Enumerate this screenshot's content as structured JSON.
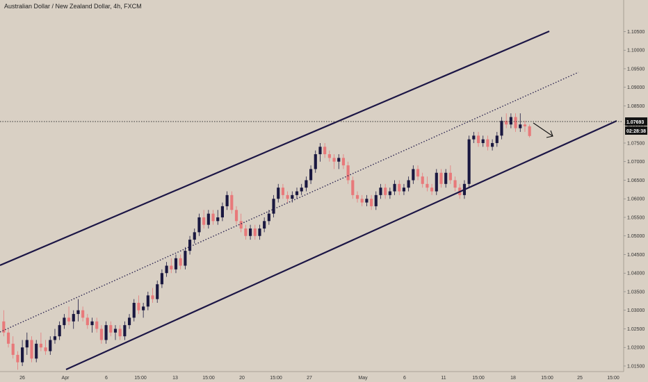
{
  "chart_data": {
    "type": "candlestick",
    "title": "Australian Dollar / New Zealand Dollar, 4h, FXCM",
    "ylim": [
      1.0135,
      1.1135
    ],
    "y_ticks": [
      "1.01500",
      "1.02000",
      "1.02500",
      "1.03000",
      "1.03500",
      "1.04000",
      "1.04500",
      "1.05000",
      "1.05500",
      "1.06000",
      "1.06500",
      "1.07000",
      "1.07500",
      "1.08000",
      "1.08500",
      "1.09000",
      "1.09500",
      "1.10000",
      "1.10500"
    ],
    "x_ticks": [
      "26",
      "Apr",
      "6",
      "15:00",
      "13",
      "15:00",
      "20",
      "15:00",
      "27",
      "May",
      "6",
      "11",
      "15:00",
      "18",
      "15:00",
      "25",
      "15:00"
    ],
    "last_price": "1.07693",
    "countdown": "02:28:38",
    "colors": {
      "up": "#1a1840",
      "down": "#e8797a",
      "line": "#1c1646",
      "label_bg": "#131313"
    },
    "candles": [
      [
        1.027,
        1.03,
        1.023,
        1.024
      ],
      [
        1.024,
        1.025,
        1.02,
        1.021
      ],
      [
        1.021,
        1.023,
        1.017,
        1.018
      ],
      [
        1.018,
        1.019,
        1.014,
        1.016
      ],
      [
        1.016,
        1.022,
        1.015,
        1.02
      ],
      [
        1.02,
        1.024,
        1.018,
        1.022
      ],
      [
        1.022,
        1.023,
        1.016,
        1.017
      ],
      [
        1.017,
        1.022,
        1.016,
        1.021
      ],
      [
        1.021,
        1.024,
        1.019,
        1.02
      ],
      [
        1.02,
        1.022,
        1.018,
        1.019
      ],
      [
        1.019,
        1.023,
        1.018,
        1.022
      ],
      [
        1.022,
        1.025,
        1.021,
        1.023
      ],
      [
        1.023,
        1.027,
        1.022,
        1.026
      ],
      [
        1.026,
        1.029,
        1.025,
        1.028
      ],
      [
        1.028,
        1.031,
        1.026,
        1.027
      ],
      [
        1.027,
        1.03,
        1.025,
        1.029
      ],
      [
        1.029,
        1.033,
        1.027,
        1.03
      ],
      [
        1.03,
        1.031,
        1.027,
        1.028
      ],
      [
        1.028,
        1.029,
        1.025,
        1.026
      ],
      [
        1.026,
        1.028,
        1.024,
        1.027
      ],
      [
        1.027,
        1.028,
        1.024,
        1.025
      ],
      [
        1.025,
        1.026,
        1.021,
        1.022
      ],
      [
        1.022,
        1.027,
        1.021,
        1.026
      ],
      [
        1.026,
        1.027,
        1.023,
        1.024
      ],
      [
        1.024,
        1.026,
        1.022,
        1.025
      ],
      [
        1.025,
        1.026,
        1.022,
        1.023
      ],
      [
        1.023,
        1.027,
        1.022,
        1.026
      ],
      [
        1.026,
        1.029,
        1.025,
        1.028
      ],
      [
        1.028,
        1.033,
        1.027,
        1.032
      ],
      [
        1.032,
        1.034,
        1.029,
        1.03
      ],
      [
        1.03,
        1.032,
        1.028,
        1.031
      ],
      [
        1.031,
        1.035,
        1.03,
        1.034
      ],
      [
        1.034,
        1.036,
        1.032,
        1.033
      ],
      [
        1.033,
        1.038,
        1.032,
        1.037
      ],
      [
        1.037,
        1.041,
        1.036,
        1.04
      ],
      [
        1.04,
        1.043,
        1.039,
        1.042
      ],
      [
        1.042,
        1.044,
        1.04,
        1.041
      ],
      [
        1.041,
        1.045,
        1.04,
        1.044
      ],
      [
        1.044,
        1.045,
        1.041,
        1.042
      ],
      [
        1.042,
        1.047,
        1.041,
        1.046
      ],
      [
        1.046,
        1.05,
        1.045,
        1.049
      ],
      [
        1.049,
        1.052,
        1.048,
        1.051
      ],
      [
        1.051,
        1.056,
        1.05,
        1.055
      ],
      [
        1.055,
        1.057,
        1.052,
        1.053
      ],
      [
        1.053,
        1.057,
        1.052,
        1.056
      ],
      [
        1.056,
        1.057,
        1.053,
        1.054
      ],
      [
        1.054,
        1.057,
        1.053,
        1.055
      ],
      [
        1.055,
        1.059,
        1.054,
        1.058
      ],
      [
        1.058,
        1.062,
        1.057,
        1.061
      ],
      [
        1.061,
        1.062,
        1.056,
        1.057
      ],
      [
        1.057,
        1.058,
        1.053,
        1.054
      ],
      [
        1.054,
        1.056,
        1.051,
        1.052
      ],
      [
        1.052,
        1.053,
        1.049,
        1.05
      ],
      [
        1.05,
        1.053,
        1.049,
        1.052
      ],
      [
        1.052,
        1.053,
        1.049,
        1.05
      ],
      [
        1.05,
        1.053,
        1.049,
        1.052
      ],
      [
        1.052,
        1.055,
        1.051,
        1.054
      ],
      [
        1.054,
        1.057,
        1.053,
        1.056
      ],
      [
        1.056,
        1.061,
        1.055,
        1.06
      ],
      [
        1.06,
        1.064,
        1.059,
        1.063
      ],
      [
        1.063,
        1.064,
        1.06,
        1.061
      ],
      [
        1.061,
        1.062,
        1.059,
        1.06
      ],
      [
        1.06,
        1.062,
        1.059,
        1.061
      ],
      [
        1.061,
        1.063,
        1.06,
        1.062
      ],
      [
        1.062,
        1.064,
        1.061,
        1.063
      ],
      [
        1.063,
        1.066,
        1.062,
        1.065
      ],
      [
        1.065,
        1.069,
        1.064,
        1.068
      ],
      [
        1.068,
        1.073,
        1.067,
        1.072
      ],
      [
        1.072,
        1.075,
        1.07,
        1.074
      ],
      [
        1.074,
        1.075,
        1.071,
        1.072
      ],
      [
        1.072,
        1.073,
        1.07,
        1.071
      ],
      [
        1.071,
        1.072,
        1.068,
        1.07
      ],
      [
        1.07,
        1.072,
        1.068,
        1.071
      ],
      [
        1.071,
        1.072,
        1.068,
        1.069
      ],
      [
        1.069,
        1.07,
        1.064,
        1.065
      ],
      [
        1.065,
        1.066,
        1.06,
        1.061
      ],
      [
        1.061,
        1.062,
        1.059,
        1.06
      ],
      [
        1.06,
        1.061,
        1.058,
        1.059
      ],
      [
        1.059,
        1.061,
        1.058,
        1.06
      ],
      [
        1.06,
        1.061,
        1.057,
        1.058
      ],
      [
        1.058,
        1.062,
        1.057,
        1.061
      ],
      [
        1.061,
        1.064,
        1.06,
        1.063
      ],
      [
        1.063,
        1.064,
        1.06,
        1.061
      ],
      [
        1.061,
        1.063,
        1.06,
        1.062
      ],
      [
        1.062,
        1.065,
        1.061,
        1.064
      ],
      [
        1.064,
        1.065,
        1.061,
        1.062
      ],
      [
        1.062,
        1.064,
        1.061,
        1.063
      ],
      [
        1.063,
        1.066,
        1.062,
        1.065
      ],
      [
        1.065,
        1.069,
        1.064,
        1.068
      ],
      [
        1.068,
        1.069,
        1.065,
        1.066
      ],
      [
        1.066,
        1.067,
        1.063,
        1.064
      ],
      [
        1.064,
        1.066,
        1.062,
        1.063
      ],
      [
        1.063,
        1.064,
        1.061,
        1.062
      ],
      [
        1.062,
        1.068,
        1.061,
        1.067
      ],
      [
        1.067,
        1.068,
        1.063,
        1.064
      ],
      [
        1.064,
        1.068,
        1.063,
        1.067
      ],
      [
        1.067,
        1.069,
        1.064,
        1.065
      ],
      [
        1.065,
        1.066,
        1.062,
        1.063
      ],
      [
        1.063,
        1.064,
        1.06,
        1.061
      ],
      [
        1.061,
        1.065,
        1.06,
        1.064
      ],
      [
        1.064,
        1.077,
        1.063,
        1.076
      ],
      [
        1.076,
        1.078,
        1.075,
        1.077
      ],
      [
        1.077,
        1.078,
        1.074,
        1.075
      ],
      [
        1.075,
        1.077,
        1.074,
        1.076
      ],
      [
        1.076,
        1.077,
        1.073,
        1.074
      ],
      [
        1.074,
        1.076,
        1.073,
        1.075
      ],
      [
        1.075,
        1.078,
        1.074,
        1.077
      ],
      [
        1.077,
        1.082,
        1.076,
        1.081
      ],
      [
        1.081,
        1.083,
        1.079,
        1.08
      ],
      [
        1.08,
        1.083,
        1.079,
        1.082
      ],
      [
        1.082,
        1.083,
        1.078,
        1.079
      ],
      [
        1.079,
        1.083,
        1.078,
        1.08
      ],
      [
        1.08,
        1.081,
        1.078,
        1.0795
      ],
      [
        1.0795,
        1.08,
        1.0765,
        1.0769
      ]
    ]
  }
}
